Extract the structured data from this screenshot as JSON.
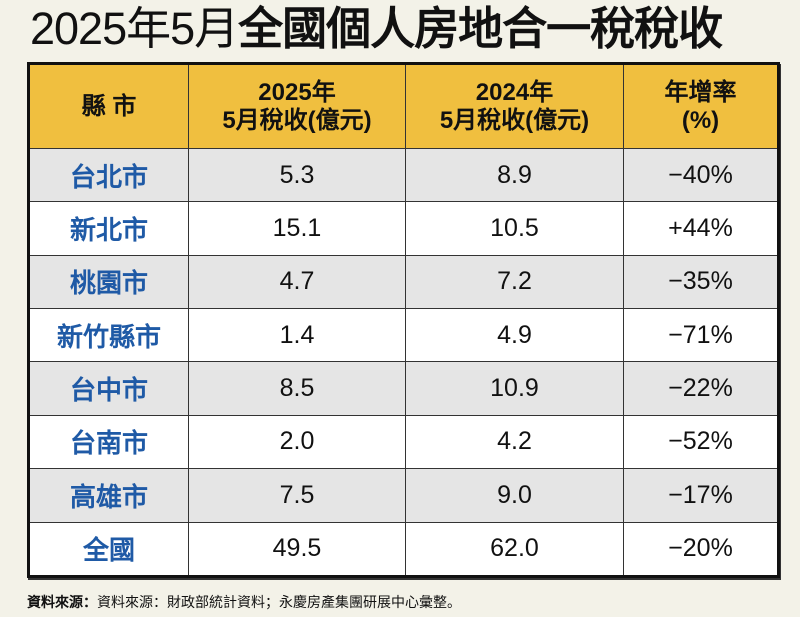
{
  "title": {
    "light": "2025年5月",
    "bold": "全國個人房地合一稅稅收"
  },
  "chart_data": {
    "type": "table",
    "columns": [
      {
        "line1": "縣 市",
        "line2": ""
      },
      {
        "line1": "2025年",
        "line2": "5月稅收(億元)"
      },
      {
        "line1": "2024年",
        "line2": "5月稅收(億元)"
      },
      {
        "line1": "年增率",
        "line2": "(%)"
      }
    ],
    "rows": [
      {
        "city": "台北市",
        "y2025": "5.3",
        "y2024": "8.9",
        "growth": "−40%"
      },
      {
        "city": "新北市",
        "y2025": "15.1",
        "y2024": "10.5",
        "growth": "+44%"
      },
      {
        "city": "桃園市",
        "y2025": "4.7",
        "y2024": "7.2",
        "growth": "−35%"
      },
      {
        "city": "新竹縣市",
        "y2025": "1.4",
        "y2024": "4.9",
        "growth": "−71%"
      },
      {
        "city": "台中市",
        "y2025": "8.5",
        "y2024": "10.9",
        "growth": "−22%"
      },
      {
        "city": "台南市",
        "y2025": "2.0",
        "y2024": "4.2",
        "growth": "−52%"
      },
      {
        "city": "高雄市",
        "y2025": "7.5",
        "y2024": "9.0",
        "growth": "−17%"
      },
      {
        "city": "全國",
        "y2025": "49.5",
        "y2024": "62.0",
        "growth": "−20%"
      }
    ],
    "colors": {
      "header": "#f0bf3f",
      "city_text": "#1f5aa6",
      "row_alt": "#e5e5e5",
      "background": "#f3f2e8"
    }
  },
  "source": {
    "label": "資料來源：",
    "text": "資料來源：財政部統計資料；永慶房產集團研展中心彙整。"
  }
}
